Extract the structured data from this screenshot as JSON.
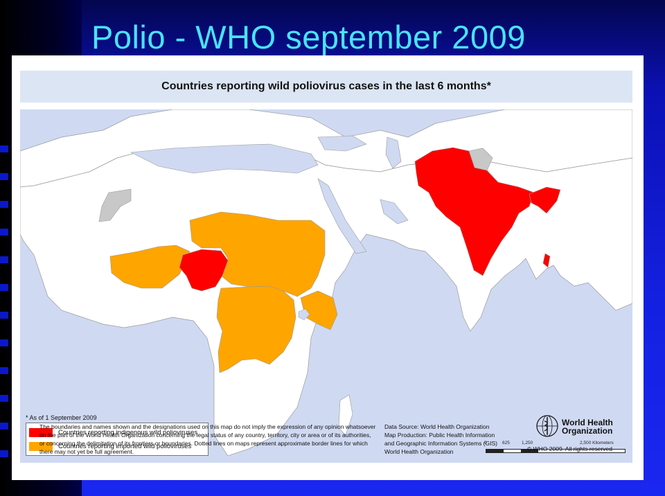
{
  "slide": {
    "title": "Polio - WHO september 2009"
  },
  "map": {
    "title": "Countries reporting wild poliovirus cases in the last 6 months*",
    "as_of": "* As of  1 September 2009",
    "colors": {
      "land": "#ffffff",
      "sea": "#cfd9f2",
      "indigenous": "#ff0000",
      "imported": "#ffa500",
      "disputed": "#c8c8c8"
    },
    "legend": [
      {
        "label": "Countries reporting indigenous wild polioviruses",
        "color": "#ff0000"
      },
      {
        "label": "Countries reporting imported wild polioviruses",
        "color": "#ffa500"
      }
    ],
    "scale": {
      "ticks": [
        "0",
        "625",
        "1,250",
        "2,500 Kilometers"
      ]
    }
  },
  "footer": {
    "disclaimer": [
      "The boundaries and names shown and the designations used on this map do not imply the expression of any opinion whatsoever",
      "on the part of the World Health Organization concerning the legal status of any country, territory, city or area or of its authorities,",
      "or concerning the delimitation of its frontiers or boundaries.  Dotted lines on maps represent approximate border lines for which",
      "there may not yet be full agreement."
    ],
    "data_source": [
      "Data Source: World Health Organization",
      "Map Production: Public Health Information",
      "and Geographic Information Systems (GIS)",
      "World Health Organization"
    ],
    "who_name_line1": "World Health",
    "who_name_line2": "Organization",
    "copyright": "© WHO 2009. All rights reserved"
  }
}
